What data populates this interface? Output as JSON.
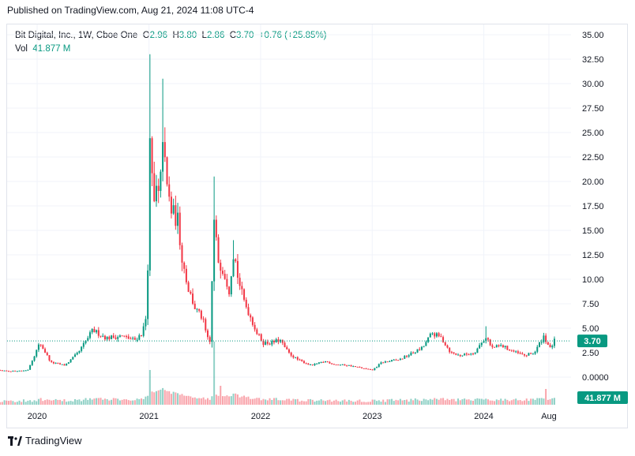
{
  "header": {
    "published": "Published on TradingView.com, Aug 21, 2024 11:08 UTC-4"
  },
  "legend": {
    "symbol": "Bit Digital, Inc., 1W, Cboe One",
    "o_label": "O",
    "o_value": "2.96",
    "h_label": "H",
    "h_value": "3.80",
    "l_label": "L",
    "l_value": "2.86",
    "c_label": "C",
    "c_value": "3.70",
    "change": "+0.76 (+25.85%)",
    "vol_label": "Vol",
    "vol_value": "41.877 M"
  },
  "colors": {
    "up": "#089981",
    "down": "#f23645",
    "price_tag": "#089981",
    "grid": "#f0f3fa"
  },
  "footer": {
    "brand": "TradingView"
  },
  "chart_data": {
    "type": "candlestick",
    "y_ticks": [
      "35.00",
      "32.50",
      "30.00",
      "27.50",
      "25.00",
      "22.50",
      "20.00",
      "17.50",
      "15.00",
      "12.50",
      "10.00",
      "7.50",
      "5.00",
      "2.50",
      "0.0000"
    ],
    "ylim": [
      -2.6,
      37
    ],
    "x_ticks": [
      "2020",
      "2021",
      "2022",
      "2023",
      "2024",
      "Aug"
    ],
    "last_price_label": "3.70",
    "last_volume_label": "41.877 M",
    "anchors": [
      [
        "2019-07-01",
        0.8
      ],
      [
        "2019-10-01",
        0.6
      ],
      [
        "2019-12-01",
        0.7
      ],
      [
        "2020-01-10",
        3.5
      ],
      [
        "2020-02-15",
        1.5
      ],
      [
        "2020-04-01",
        1.2
      ],
      [
        "2020-05-15",
        2.5
      ],
      [
        "2020-07-01",
        4.8
      ],
      [
        "2020-08-15",
        4.0
      ],
      [
        "2020-10-01",
        4.2
      ],
      [
        "2020-11-15",
        3.8
      ],
      [
        "2020-12-10",
        4.5
      ],
      [
        "2020-12-25",
        6.5
      ],
      [
        "2021-01-05",
        25.0
      ],
      [
        "2021-01-15",
        17.0
      ],
      [
        "2021-01-25",
        19.0
      ],
      [
        "2021-02-05",
        18.0
      ],
      [
        "2021-02-15",
        25.0
      ],
      [
        "2021-02-25",
        20.0
      ],
      [
        "2021-03-15",
        17.0
      ],
      [
        "2021-04-05",
        16.0
      ],
      [
        "2021-04-20",
        12.0
      ],
      [
        "2021-05-10",
        9.0
      ],
      [
        "2021-06-01",
        7.0
      ],
      [
        "2021-06-25",
        6.0
      ],
      [
        "2021-07-10",
        4.0
      ],
      [
        "2021-07-20",
        3.5
      ],
      [
        "2021-08-01",
        16.0
      ],
      [
        "2021-08-15",
        12.0
      ],
      [
        "2021-09-01",
        11.0
      ],
      [
        "2021-09-20",
        9.0
      ],
      [
        "2021-10-05",
        13.0
      ],
      [
        "2021-10-20",
        10.0
      ],
      [
        "2021-11-05",
        8.0
      ],
      [
        "2021-12-01",
        6.0
      ],
      [
        "2021-12-20",
        4.5
      ],
      [
        "2022-01-10",
        3.5
      ],
      [
        "2022-02-05",
        3.5
      ],
      [
        "2022-03-05",
        3.8
      ],
      [
        "2022-04-01",
        2.5
      ],
      [
        "2022-05-01",
        1.8
      ],
      [
        "2022-06-15",
        1.2
      ],
      [
        "2022-08-01",
        1.6
      ],
      [
        "2022-09-01",
        1.3
      ],
      [
        "2022-10-15",
        1.2
      ],
      [
        "2022-12-01",
        0.9
      ],
      [
        "2023-01-01",
        0.7
      ],
      [
        "2023-02-01",
        1.5
      ],
      [
        "2023-04-01",
        1.8
      ],
      [
        "2023-05-15",
        2.5
      ],
      [
        "2023-06-15",
        3.0
      ],
      [
        "2023-07-15",
        4.5
      ],
      [
        "2023-08-15",
        4.0
      ],
      [
        "2023-09-15",
        2.5
      ],
      [
        "2023-10-15",
        2.2
      ],
      [
        "2023-12-01",
        2.5
      ],
      [
        "2024-01-10",
        4.2
      ],
      [
        "2024-01-25",
        3.0
      ],
      [
        "2024-03-01",
        3.2
      ],
      [
        "2024-04-15",
        2.5
      ],
      [
        "2024-05-15",
        2.2
      ],
      [
        "2024-06-15",
        2.5
      ],
      [
        "2024-07-15",
        4.2
      ],
      [
        "2024-08-05",
        2.9
      ],
      [
        "2024-08-19",
        3.7
      ]
    ],
    "spikes": [
      [
        "2021-01-05",
        33.0
      ],
      [
        "2021-02-12",
        30.5
      ],
      [
        "2021-08-01",
        20.5
      ],
      [
        "2021-10-01",
        14.0
      ],
      [
        "2024-01-08",
        5.2
      ]
    ],
    "volume_spikes": [
      [
        "2021-01-05",
        0.55
      ],
      [
        "2021-08-01",
        1.0
      ],
      [
        "2021-08-22",
        0.3
      ],
      [
        "2024-07-22",
        0.25
      ]
    ]
  }
}
